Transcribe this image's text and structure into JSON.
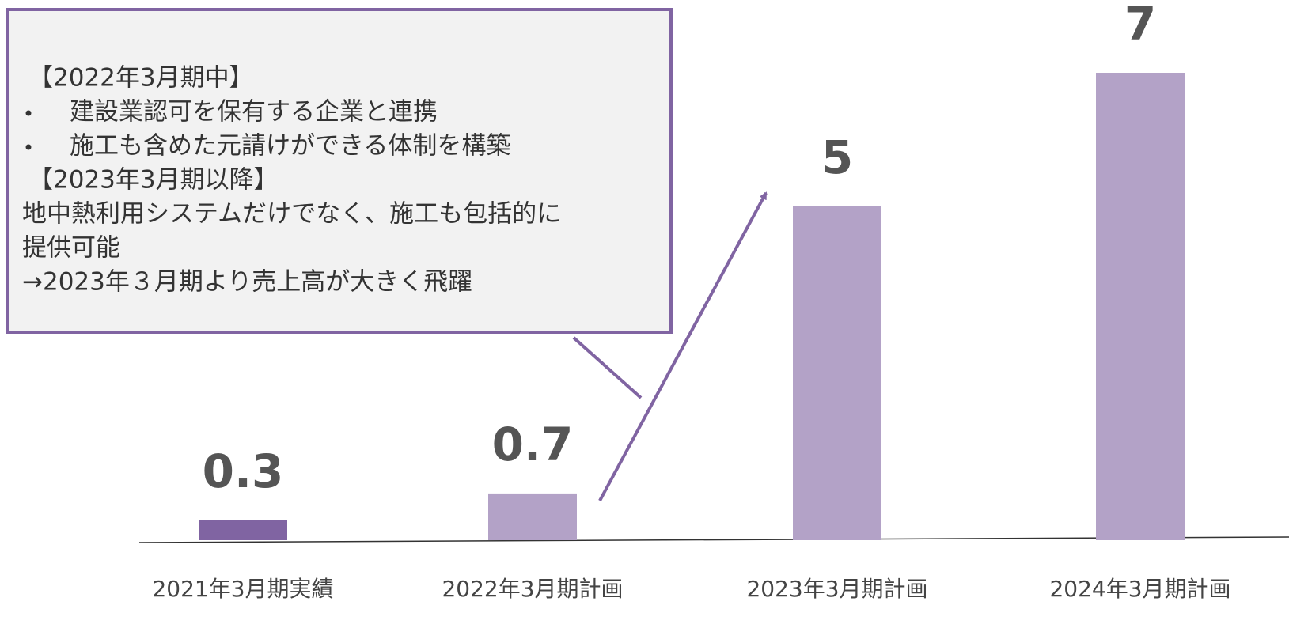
{
  "chart_data": {
    "type": "bar",
    "categories": [
      "2021年3月期実績",
      "2022年3月期計画",
      "2023年3月期計画",
      "2024年3月期計画"
    ],
    "values": [
      0.3,
      0.7,
      5,
      7
    ],
    "colors": [
      "#8064a2",
      "#b3a2c7",
      "#b3a2c7",
      "#b3a2c7"
    ],
    "annotations": [
      {
        "heading": "【2022年3月期中】",
        "bullets": [
          "建設業認可を保有する企業と連携",
          "施工も含めた元請けができる体制を構築"
        ]
      },
      {
        "heading": "【2023年3月期以降】",
        "lines": [
          "地中熱利用システムだけでなく、施工も包括的に",
          "提供可能",
          "→2023年３月期より売上高が大きく飛躍"
        ]
      }
    ]
  }
}
